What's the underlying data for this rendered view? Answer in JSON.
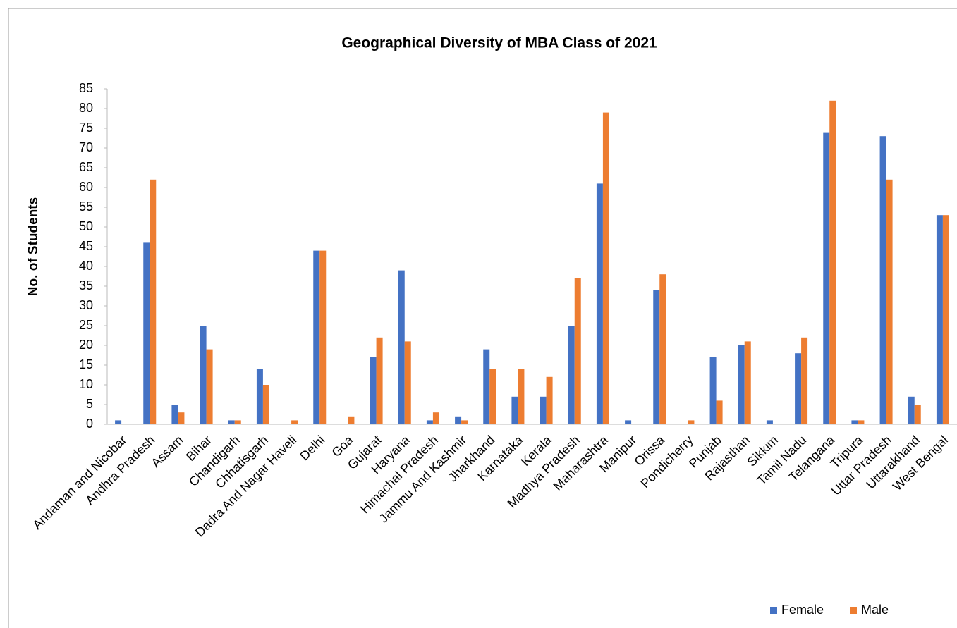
{
  "chart_data": {
    "type": "bar",
    "title": "Geographical Diversity of  MBA Class of 2021",
    "y_label": "No. of Students",
    "categories": [
      "Andaman and Nicobar",
      "Andhra Pradesh",
      "Assam",
      "Bihar",
      "Chandigarh",
      "Chhatisgarh",
      "Dadra And Nagar Haveli",
      "Delhi",
      "Goa",
      "Gujarat",
      "Haryana",
      "Himachal Pradesh",
      "Jammu And Kashmir",
      "Jharkhand",
      "Karnataka",
      "Kerala",
      "Madhya Pradesh",
      "Maharashtra",
      "Manipur",
      "Orissa",
      "Pondicherry",
      "Punjab",
      "Rajasthan",
      "Sikkim",
      "Tamil Nadu",
      "Telangana",
      "Tripura",
      "Uttar Pradesh",
      "Uttarakhand",
      "West Bengal"
    ],
    "series": [
      {
        "name": "Female",
        "color": "#4472c4",
        "values": [
          1,
          46,
          5,
          25,
          1,
          14,
          0,
          44,
          0,
          17,
          39,
          1,
          2,
          19,
          7,
          7,
          25,
          61,
          1,
          34,
          0,
          17,
          20,
          1,
          18,
          74,
          1,
          73,
          7,
          53
        ]
      },
      {
        "name": "Male",
        "color": "#ed7d31",
        "values": [
          0,
          62,
          3,
          19,
          1,
          10,
          1,
          44,
          2,
          22,
          21,
          3,
          1,
          14,
          14,
          12,
          37,
          79,
          0,
          38,
          1,
          6,
          21,
          0,
          22,
          82,
          1,
          62,
          5,
          53
        ]
      }
    ],
    "ylim": [
      0,
      85
    ],
    "yticks": [
      0,
      5,
      10,
      15,
      20,
      25,
      30,
      35,
      40,
      45,
      50,
      55,
      60,
      65,
      70,
      75,
      80,
      85
    ],
    "legend": "bottom-right"
  }
}
